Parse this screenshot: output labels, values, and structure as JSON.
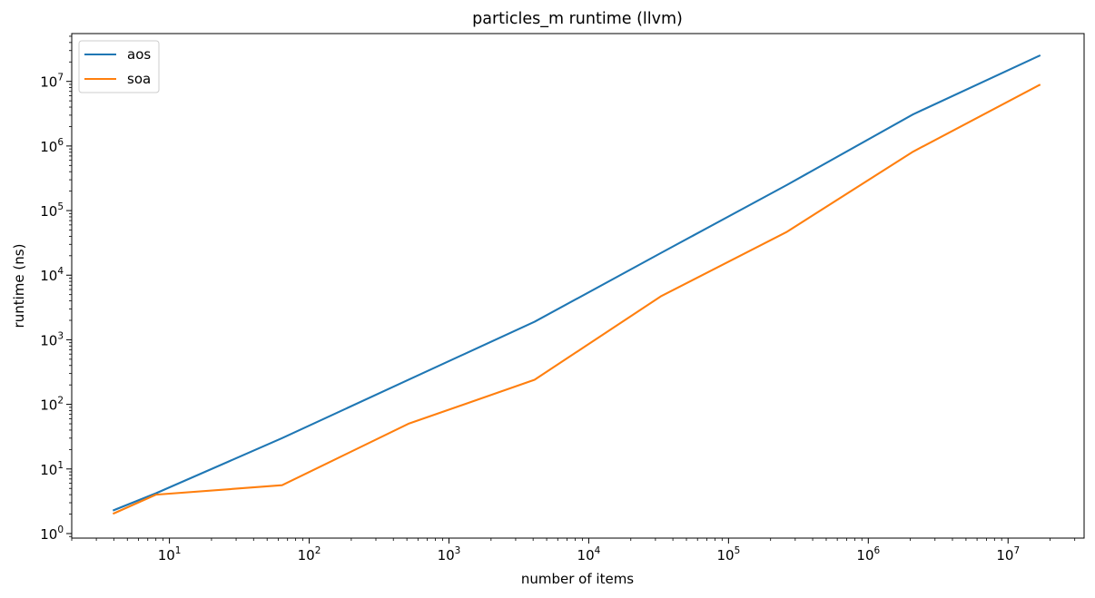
{
  "chart_data": {
    "type": "line",
    "title": "particles_m runtime (llvm)",
    "xlabel": "number of items",
    "ylabel": "runtime (ns)",
    "xscale": "log",
    "yscale": "log",
    "xlim": [
      2,
      35000000
    ],
    "ylim": [
      0.85,
      55000000
    ],
    "grid": false,
    "legend_position": "top-left",
    "x_ticks": [
      {
        "base": "10",
        "exp": "1",
        "value": 10
      },
      {
        "base": "10",
        "exp": "2",
        "value": 100
      },
      {
        "base": "10",
        "exp": "3",
        "value": 1000
      },
      {
        "base": "10",
        "exp": "4",
        "value": 10000
      },
      {
        "base": "10",
        "exp": "5",
        "value": 100000
      },
      {
        "base": "10",
        "exp": "6",
        "value": 1000000
      },
      {
        "base": "10",
        "exp": "7",
        "value": 10000000
      }
    ],
    "y_ticks": [
      {
        "base": "10",
        "exp": "0",
        "value": 1
      },
      {
        "base": "10",
        "exp": "1",
        "value": 10
      },
      {
        "base": "10",
        "exp": "2",
        "value": 100
      },
      {
        "base": "10",
        "exp": "3",
        "value": 1000
      },
      {
        "base": "10",
        "exp": "4",
        "value": 10000
      },
      {
        "base": "10",
        "exp": "5",
        "value": 100000
      },
      {
        "base": "10",
        "exp": "6",
        "value": 1000000
      },
      {
        "base": "10",
        "exp": "7",
        "value": 10000000
      }
    ],
    "series": [
      {
        "name": "aos",
        "color": "#1f77b4",
        "x": [
          4,
          8,
          64,
          512,
          4096,
          32768,
          262144,
          2097152,
          16777216
        ],
        "y": [
          2.3,
          4.2,
          30,
          240,
          1900,
          22000,
          250000,
          3100000,
          25000000
        ]
      },
      {
        "name": "soa",
        "color": "#ff7f0e",
        "x": [
          4,
          8,
          64,
          512,
          4096,
          32768,
          262144,
          2097152,
          16777216
        ],
        "y": [
          2.05,
          4.0,
          5.6,
          50,
          240,
          4700,
          47000,
          820000,
          8800000
        ]
      }
    ]
  }
}
